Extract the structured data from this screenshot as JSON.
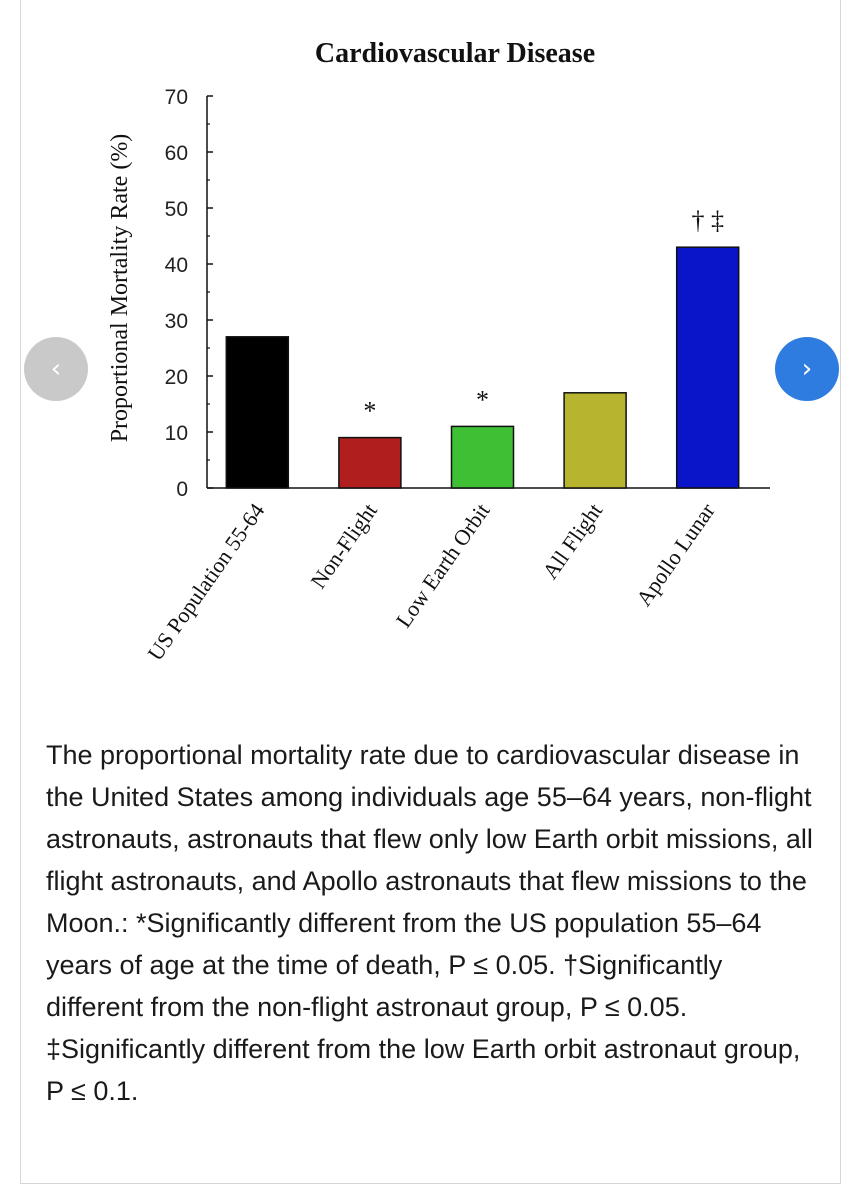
{
  "chart_data": {
    "type": "bar",
    "title": "Cardiovascular Disease",
    "xlabel": "",
    "ylabel": "Proportional Mortality Rate (%)",
    "ylim": [
      0,
      70
    ],
    "yticks": [
      0,
      10,
      20,
      30,
      40,
      50,
      60,
      70
    ],
    "categories": [
      "US Population 55-64",
      "Non-Flight",
      "Low Earth Orbit",
      "All Flight",
      "Apollo Lunar"
    ],
    "values": [
      27,
      9,
      11,
      17,
      43
    ],
    "colors": [
      "#000000",
      "#b01e1e",
      "#3fbf33",
      "#b7b530",
      "#0a14c8"
    ],
    "annotations": [
      "",
      "*",
      "*",
      "",
      "† ‡"
    ],
    "grid": false
  },
  "carousel": {
    "prev_icon": "chevron-left-icon",
    "next_icon": "chevron-right-icon",
    "prev_symbol": "‹",
    "next_symbol": "›",
    "prev_color": "#c9c9c9",
    "next_color": "#2f7ce0"
  },
  "caption": {
    "text": "The proportional mortality rate due to cardiovascular disease in the United States among individuals age 55–64 years, non-flight astronauts, astronauts that flew only low Earth orbit missions, all flight astronauts, and Apollo astronauts that flew missions to the Moon.: *Significantly different from the US population 55–64 years of age at the time of death, P ≤ 0.05. †Significantly different from the non-flight astronaut group, P ≤ 0.05. ‡Significantly different from the low Earth orbit astronaut group, P ≤ 0.1."
  }
}
